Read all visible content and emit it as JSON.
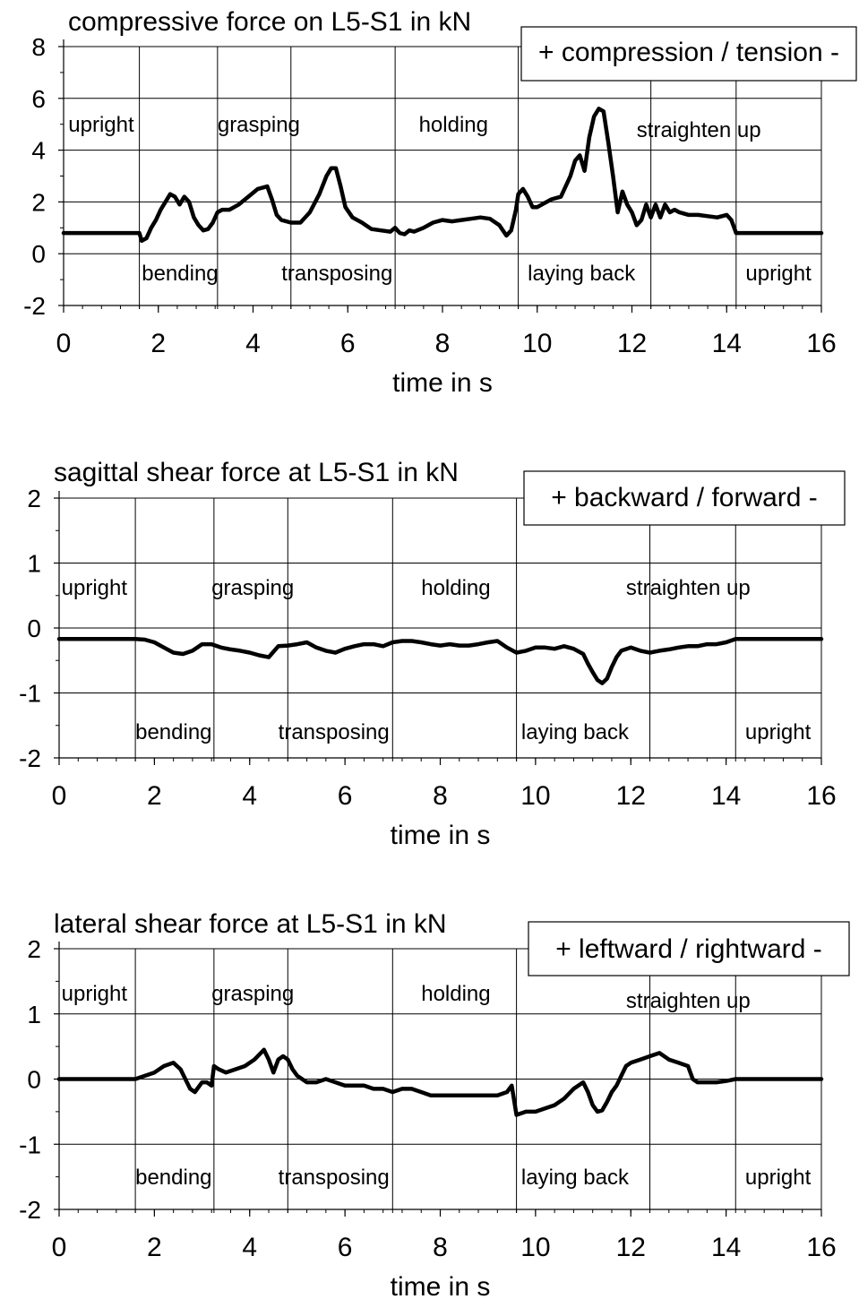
{
  "chart_data": [
    {
      "type": "line",
      "title": "compressive force on L5-S1 in kN",
      "legend_box": "+ compression / tension -",
      "xlabel": "time in s",
      "xlim": [
        0,
        16
      ],
      "ylim": [
        -2,
        8
      ],
      "xticks": [
        0,
        2,
        4,
        6,
        8,
        10,
        12,
        14,
        16
      ],
      "yticks": [
        -2,
        0,
        2,
        4,
        6,
        8
      ],
      "grid": true,
      "phase_boundaries": [
        1.6,
        3.25,
        4.8,
        7.0,
        9.6,
        12.4,
        14.2
      ],
      "phase_labels_top": [
        {
          "text": "upright",
          "x": 0.1
        },
        {
          "text": "grasping",
          "x": 3.25
        },
        {
          "text": "holding",
          "x": 7.5
        },
        {
          "text": "straighten up",
          "x": 12.1
        }
      ],
      "phase_labels_bottom": [
        {
          "text": "bending",
          "x": 1.65
        },
        {
          "text": "transposing",
          "x": 4.6
        },
        {
          "text": "laying back",
          "x": 9.8
        },
        {
          "text": "upright",
          "x": 14.4
        }
      ],
      "series": [
        {
          "x": [
            0,
            1.6,
            1.65,
            1.75,
            1.85,
            1.95,
            2.05,
            2.15,
            2.25,
            2.35,
            2.45,
            2.55,
            2.65,
            2.75,
            2.85,
            2.95,
            3.05,
            3.15,
            3.25,
            3.35,
            3.5,
            3.7,
            3.9,
            4.1,
            4.3,
            4.4,
            4.5,
            4.6,
            4.8,
            5.0,
            5.2,
            5.4,
            5.55,
            5.65,
            5.75,
            5.85,
            5.95,
            6.1,
            6.3,
            6.5,
            6.7,
            6.9,
            7.0,
            7.1,
            7.2,
            7.3,
            7.4,
            7.6,
            7.8,
            8.0,
            8.2,
            8.4,
            8.6,
            8.8,
            9.0,
            9.2,
            9.35,
            9.45,
            9.55,
            9.6,
            9.7,
            9.8,
            9.9,
            10.0,
            10.1,
            10.3,
            10.5,
            10.6,
            10.7,
            10.8,
            10.9,
            11.0,
            11.1,
            11.2,
            11.3,
            11.4,
            11.5,
            11.6,
            11.7,
            11.8,
            11.9,
            12.0,
            12.1,
            12.2,
            12.3,
            12.4,
            12.5,
            12.6,
            12.7,
            12.8,
            12.9,
            13.0,
            13.2,
            13.4,
            13.6,
            13.8,
            14.0,
            14.1,
            14.2,
            16
          ],
          "y": [
            0.8,
            0.8,
            0.5,
            0.6,
            1.0,
            1.3,
            1.7,
            2.0,
            2.3,
            2.2,
            1.9,
            2.2,
            2.0,
            1.4,
            1.1,
            0.9,
            0.95,
            1.2,
            1.6,
            1.7,
            1.7,
            1.9,
            2.2,
            2.5,
            2.6,
            2.1,
            1.5,
            1.3,
            1.2,
            1.2,
            1.6,
            2.3,
            3.0,
            3.3,
            3.3,
            2.6,
            1.8,
            1.4,
            1.2,
            0.95,
            0.9,
            0.85,
            1.0,
            0.8,
            0.75,
            0.9,
            0.85,
            1.0,
            1.2,
            1.3,
            1.25,
            1.3,
            1.35,
            1.4,
            1.35,
            1.1,
            0.7,
            0.9,
            1.7,
            2.3,
            2.5,
            2.2,
            1.8,
            1.8,
            1.9,
            2.1,
            2.2,
            2.6,
            3.0,
            3.6,
            3.8,
            3.2,
            4.5,
            5.3,
            5.6,
            5.5,
            4.3,
            3.0,
            1.6,
            2.4,
            1.9,
            1.6,
            1.1,
            1.3,
            1.9,
            1.4,
            1.9,
            1.4,
            1.9,
            1.6,
            1.7,
            1.6,
            1.5,
            1.5,
            1.45,
            1.4,
            1.5,
            1.3,
            0.8,
            0.8
          ]
        }
      ]
    },
    {
      "type": "line",
      "title": "sagittal shear force at L5-S1 in kN",
      "legend_box": "+ backward / forward -",
      "xlabel": "time in s",
      "xlim": [
        0,
        16
      ],
      "ylim": [
        -2,
        2
      ],
      "xticks": [
        0,
        2,
        4,
        6,
        8,
        10,
        12,
        14,
        16
      ],
      "yticks": [
        -2,
        -1,
        0,
        1,
        2
      ],
      "grid": true,
      "phase_boundaries": [
        1.6,
        3.25,
        4.8,
        7.0,
        9.6,
        12.4,
        14.2
      ],
      "phase_labels_top": [
        {
          "text": "upright",
          "x": 0.05
        },
        {
          "text": "grasping",
          "x": 3.2
        },
        {
          "text": "holding",
          "x": 7.6
        },
        {
          "text": "straighten up",
          "x": 11.9
        }
      ],
      "phase_labels_bottom": [
        {
          "text": "bending",
          "x": 1.6
        },
        {
          "text": "transposing",
          "x": 4.6
        },
        {
          "text": "laying back",
          "x": 9.7
        },
        {
          "text": "upright",
          "x": 14.4
        }
      ],
      "series": [
        {
          "x": [
            0,
            1.6,
            1.8,
            2.0,
            2.2,
            2.4,
            2.6,
            2.8,
            3.0,
            3.2,
            3.4,
            3.6,
            3.8,
            4.0,
            4.2,
            4.4,
            4.6,
            4.8,
            5.0,
            5.2,
            5.4,
            5.6,
            5.8,
            6.0,
            6.2,
            6.4,
            6.6,
            6.8,
            7.0,
            7.2,
            7.4,
            7.6,
            7.8,
            8.0,
            8.2,
            8.4,
            8.6,
            8.8,
            9.0,
            9.2,
            9.4,
            9.6,
            9.8,
            10.0,
            10.2,
            10.4,
            10.6,
            10.8,
            11.0,
            11.1,
            11.2,
            11.3,
            11.4,
            11.5,
            11.6,
            11.7,
            11.8,
            12.0,
            12.2,
            12.4,
            12.6,
            12.8,
            13.0,
            13.2,
            13.4,
            13.6,
            13.8,
            14.0,
            14.2,
            16
          ],
          "y": [
            -0.17,
            -0.17,
            -0.18,
            -0.22,
            -0.3,
            -0.38,
            -0.4,
            -0.35,
            -0.25,
            -0.25,
            -0.3,
            -0.33,
            -0.35,
            -0.38,
            -0.42,
            -0.45,
            -0.28,
            -0.27,
            -0.25,
            -0.22,
            -0.3,
            -0.35,
            -0.38,
            -0.32,
            -0.28,
            -0.25,
            -0.25,
            -0.28,
            -0.22,
            -0.2,
            -0.2,
            -0.22,
            -0.25,
            -0.27,
            -0.25,
            -0.27,
            -0.27,
            -0.25,
            -0.22,
            -0.2,
            -0.3,
            -0.38,
            -0.35,
            -0.3,
            -0.3,
            -0.32,
            -0.28,
            -0.32,
            -0.4,
            -0.55,
            -0.68,
            -0.8,
            -0.85,
            -0.78,
            -0.6,
            -0.45,
            -0.35,
            -0.3,
            -0.35,
            -0.38,
            -0.35,
            -0.33,
            -0.3,
            -0.28,
            -0.28,
            -0.25,
            -0.25,
            -0.22,
            -0.17,
            -0.17
          ]
        }
      ]
    },
    {
      "type": "line",
      "title": "lateral shear force at L5-S1 in kN",
      "legend_box": "+ leftward / rightward -",
      "xlabel": "time in s",
      "xlim": [
        0,
        16
      ],
      "ylim": [
        -2,
        2
      ],
      "xticks": [
        0,
        2,
        4,
        6,
        8,
        10,
        12,
        14,
        16
      ],
      "yticks": [
        -2,
        -1,
        0,
        1,
        2
      ],
      "grid": true,
      "phase_boundaries": [
        1.6,
        3.25,
        4.8,
        7.0,
        9.6,
        12.4,
        14.2
      ],
      "phase_labels_top": [
        {
          "text": "upright",
          "x": 0.05
        },
        {
          "text": "grasping",
          "x": 3.2
        },
        {
          "text": "holding",
          "x": 7.6
        },
        {
          "text": "straighten up",
          "x": 11.9
        }
      ],
      "phase_labels_bottom": [
        {
          "text": "bending",
          "x": 1.6
        },
        {
          "text": "transposing",
          "x": 4.6
        },
        {
          "text": "laying back",
          "x": 9.7
        },
        {
          "text": "upright",
          "x": 14.4
        }
      ],
      "series": [
        {
          "x": [
            0,
            1.6,
            1.8,
            2.0,
            2.2,
            2.4,
            2.55,
            2.65,
            2.75,
            2.85,
            3.0,
            3.1,
            3.2,
            3.25,
            3.35,
            3.5,
            3.7,
            3.9,
            4.1,
            4.3,
            4.4,
            4.5,
            4.6,
            4.7,
            4.8,
            4.9,
            5.0,
            5.2,
            5.4,
            5.6,
            5.8,
            6.0,
            6.2,
            6.4,
            6.6,
            6.8,
            7.0,
            7.2,
            7.4,
            7.6,
            7.8,
            8.0,
            8.2,
            8.4,
            8.6,
            8.8,
            9.0,
            9.2,
            9.4,
            9.5,
            9.6,
            9.8,
            10.0,
            10.2,
            10.4,
            10.6,
            10.8,
            11.0,
            11.1,
            11.2,
            11.3,
            11.4,
            11.5,
            11.6,
            11.7,
            11.8,
            11.9,
            12.0,
            12.2,
            12.4,
            12.6,
            12.8,
            13.0,
            13.2,
            13.3,
            13.4,
            13.6,
            13.8,
            14.0,
            14.2,
            16
          ],
          "y": [
            0.0,
            0.0,
            0.05,
            0.1,
            0.2,
            0.25,
            0.15,
            0.0,
            -0.15,
            -0.2,
            -0.05,
            -0.05,
            -0.1,
            0.2,
            0.15,
            0.1,
            0.15,
            0.2,
            0.3,
            0.45,
            0.3,
            0.1,
            0.3,
            0.35,
            0.3,
            0.15,
            0.05,
            -0.05,
            -0.05,
            0.0,
            -0.05,
            -0.1,
            -0.1,
            -0.1,
            -0.15,
            -0.15,
            -0.2,
            -0.15,
            -0.15,
            -0.2,
            -0.25,
            -0.25,
            -0.25,
            -0.25,
            -0.25,
            -0.25,
            -0.25,
            -0.25,
            -0.2,
            -0.1,
            -0.55,
            -0.5,
            -0.5,
            -0.45,
            -0.4,
            -0.3,
            -0.15,
            -0.05,
            -0.2,
            -0.4,
            -0.5,
            -0.48,
            -0.35,
            -0.2,
            -0.1,
            0.05,
            0.2,
            0.25,
            0.3,
            0.35,
            0.4,
            0.3,
            0.25,
            0.2,
            0.0,
            -0.05,
            -0.05,
            -0.05,
            -0.03,
            0.0,
            0.0
          ]
        }
      ]
    }
  ]
}
